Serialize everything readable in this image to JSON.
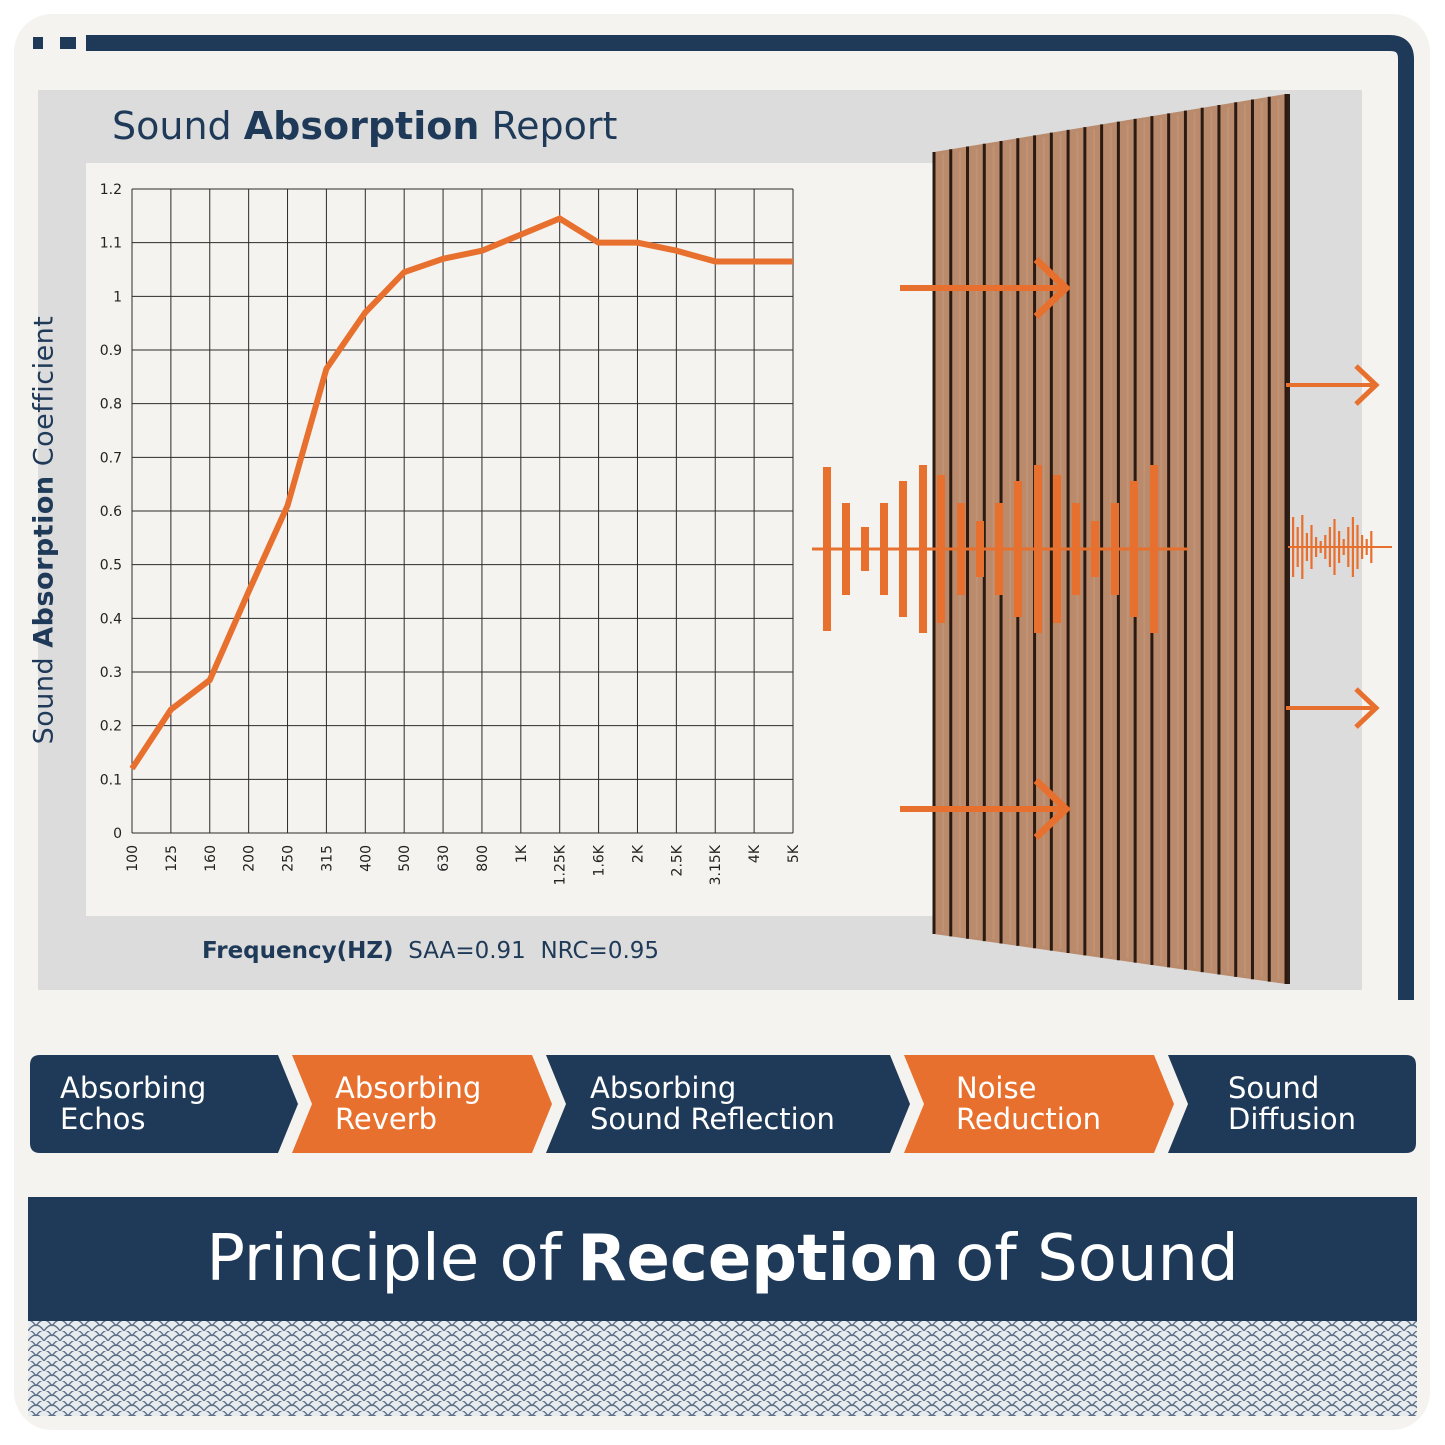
{
  "chart_data": {
    "type": "line",
    "title": "Sound Absorption Report",
    "title_parts": {
      "pre": "Sound ",
      "bold": "Absorption",
      "post": " Report"
    },
    "ylabel": "Sound Absorption Coefficient",
    "ylabel_parts": {
      "pre": "Sound ",
      "bold": "Absorption",
      "post": " Coefficient"
    },
    "xlabel": "Frequency(HZ)",
    "categories": [
      "100",
      "125",
      "160",
      "200",
      "250",
      "315",
      "400",
      "500",
      "630",
      "800",
      "1K",
      "1.25K",
      "1.6K",
      "2K",
      "2.5K",
      "3.15K",
      "4K",
      "5K"
    ],
    "values": [
      0.12,
      0.23,
      0.285,
      0.45,
      0.61,
      0.865,
      0.97,
      1.045,
      1.07,
      1.085,
      1.115,
      1.145,
      1.1,
      1.1,
      1.085,
      1.065,
      1.065,
      1.065
    ],
    "ylim": [
      0,
      1.2
    ],
    "yticks": [
      "0",
      "0.1",
      "0.2",
      "0.3",
      "0.4",
      "0.5",
      "0.6",
      "0.7",
      "0.8",
      "0.9",
      "1",
      "1.1",
      "1.2"
    ],
    "grid": true,
    "line_color": "#e8702e"
  },
  "stats": {
    "saa": "SAA=0.91",
    "nrc": "NRC=0.95"
  },
  "features": [
    {
      "line1": "Absorbing",
      "line2": "Echos",
      "color": "#1f3a58"
    },
    {
      "line1": "Absorbing",
      "line2": "Reverb",
      "color": "#e8702e"
    },
    {
      "line1": "Absorbing",
      "line2": "Sound Reflection",
      "color": "#1f3a58"
    },
    {
      "line1": "Noise",
      "line2": "Reduction",
      "color": "#e8702e"
    },
    {
      "line1": "Sound",
      "line2": "Diffusion",
      "color": "#1f3a58"
    }
  ],
  "banner": {
    "pre": "Principle of",
    "bold": "Reception",
    "post": "of Sound"
  },
  "colors": {
    "navy": "#1f3a58",
    "orange": "#e8702e",
    "wood": "#b98a6b",
    "panel": "#dcdcdc",
    "paper": "#f5f3ef"
  },
  "icons": [
    "arrow-right-icon",
    "sound-wave-icon",
    "wood-slat-panel-icon"
  ]
}
